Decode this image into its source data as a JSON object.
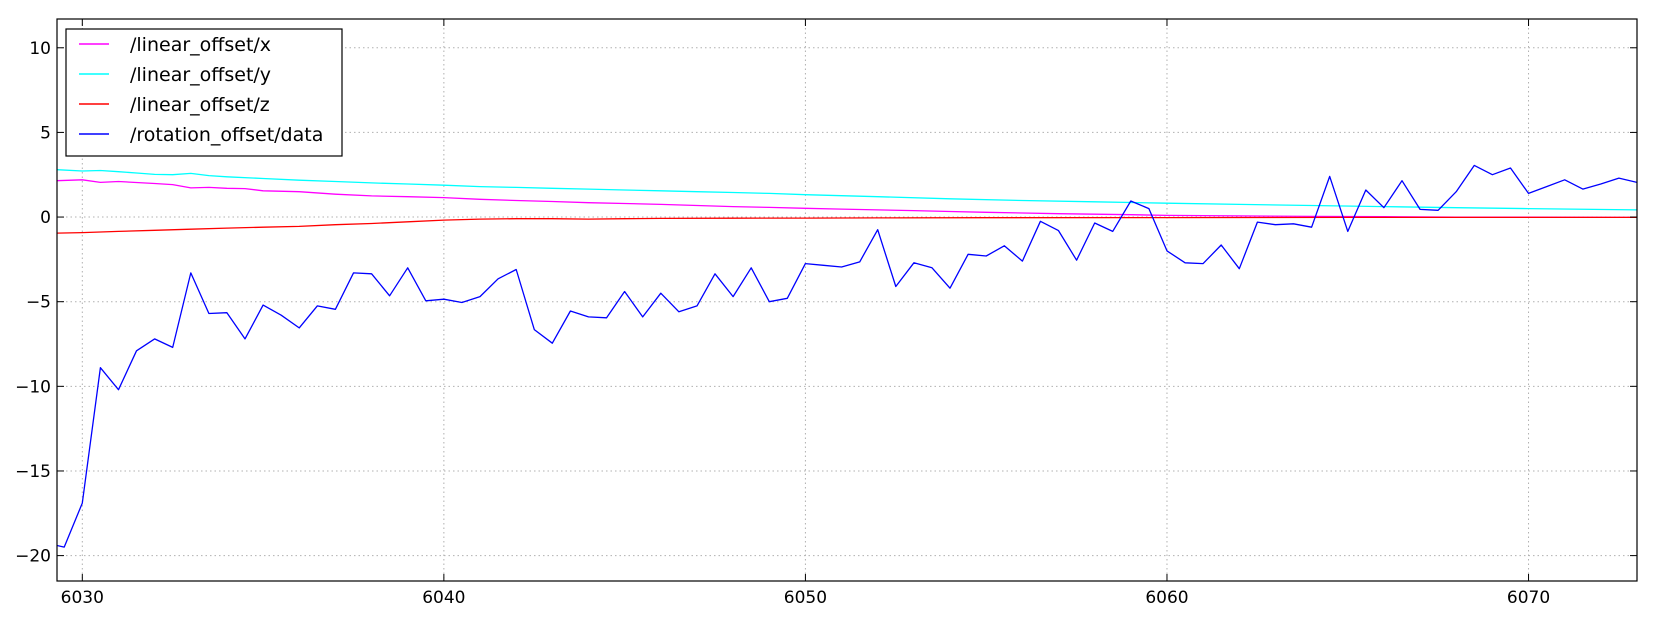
{
  "chart_data": {
    "type": "line",
    "title": "",
    "xlabel": "",
    "ylabel": "",
    "xlim": [
      6029.3,
      6073.0
    ],
    "ylim": [
      -21.5,
      11.7
    ],
    "xticks": [
      6030,
      6040,
      6050,
      6060,
      6070
    ],
    "xtick_labels": [
      "6030",
      "6040",
      "6050",
      "6060",
      "6070"
    ],
    "yticks": [
      10,
      5,
      0,
      -5,
      -10,
      -15,
      -20
    ],
    "ytick_labels": [
      "10",
      "5",
      "0",
      "−5",
      "−10",
      "−15",
      "−20"
    ],
    "grid": true,
    "legend_position": "top-left",
    "series": [
      {
        "name": "/linear_offset/x",
        "color": "#ff00ff",
        "x": [
          6029.3,
          6030.0,
          6030.5,
          6031.0,
          6032.0,
          6032.5,
          6033.0,
          6033.5,
          6034.0,
          6034.5,
          6035.0,
          6036.0,
          6037.0,
          6038.0,
          6039.0,
          6040.0,
          6041.0,
          6042.0,
          6043.0,
          6044.0,
          6045.0,
          6046.0,
          6047.0,
          6048.0,
          6049.0,
          6050.0,
          6051.0,
          6052.0,
          6053.0,
          6054.0,
          6055.0,
          6056.0,
          6057.0,
          6058.0,
          6059.0,
          6060.0,
          6062.0,
          6064.0,
          6066.0,
          6068.0,
          6070.0,
          6073.0
        ],
        "y": [
          2.15,
          2.2,
          2.05,
          2.1,
          1.98,
          1.92,
          1.72,
          1.75,
          1.7,
          1.68,
          1.55,
          1.5,
          1.35,
          1.25,
          1.2,
          1.15,
          1.05,
          0.98,
          0.92,
          0.85,
          0.8,
          0.75,
          0.68,
          0.62,
          0.57,
          0.52,
          0.47,
          0.42,
          0.38,
          0.33,
          0.28,
          0.24,
          0.2,
          0.17,
          0.14,
          0.1,
          0.07,
          0.04,
          0.02,
          0.0,
          -0.01,
          -0.02
        ]
      },
      {
        "name": "/linear_offset/y",
        "color": "#00ffff",
        "x": [
          6029.3,
          6030.0,
          6030.5,
          6031.0,
          6031.5,
          6032.0,
          6032.5,
          6033.0,
          6033.5,
          6034.0,
          6035.0,
          6036.0,
          6037.0,
          6038.0,
          6039.0,
          6040.0,
          6041.0,
          6042.0,
          6043.0,
          6044.0,
          6045.0,
          6046.0,
          6047.0,
          6048.0,
          6049.0,
          6050.0,
          6052.0,
          6054.0,
          6056.0,
          6058.0,
          6060.0,
          6062.0,
          6064.0,
          6066.0,
          6068.0,
          6070.0,
          6073.0
        ],
        "y": [
          2.8,
          2.72,
          2.75,
          2.68,
          2.6,
          2.52,
          2.5,
          2.58,
          2.45,
          2.38,
          2.28,
          2.18,
          2.1,
          2.02,
          1.95,
          1.88,
          1.8,
          1.75,
          1.7,
          1.65,
          1.6,
          1.55,
          1.5,
          1.45,
          1.4,
          1.32,
          1.2,
          1.08,
          0.98,
          0.9,
          0.82,
          0.75,
          0.68,
          0.62,
          0.55,
          0.5,
          0.42
        ]
      },
      {
        "name": "/linear_offset/z",
        "color": "#ff0000",
        "x": [
          6029.3,
          6030.0,
          6031.0,
          6032.0,
          6033.0,
          6034.0,
          6035.0,
          6036.0,
          6037.0,
          6038.0,
          6039.0,
          6040.0,
          6041.0,
          6042.0,
          6043.0,
          6044.0,
          6045.0,
          6046.0,
          6048.0,
          6050.0,
          6052.0,
          6055.0,
          6060.0,
          6065.0,
          6070.0,
          6073.0
        ],
        "y": [
          -0.95,
          -0.92,
          -0.85,
          -0.78,
          -0.72,
          -0.65,
          -0.6,
          -0.55,
          -0.45,
          -0.38,
          -0.28,
          -0.18,
          -0.12,
          -0.1,
          -0.1,
          -0.12,
          -0.1,
          -0.08,
          -0.07,
          -0.06,
          -0.05,
          -0.04,
          -0.03,
          -0.02,
          -0.02,
          -0.02
        ]
      },
      {
        "name": "/rotation_offset/data",
        "color": "#0000ff",
        "x": [
          6029.3,
          6029.5,
          6030.0,
          6030.5,
          6031.0,
          6031.5,
          6032.0,
          6032.5,
          6033.0,
          6033.5,
          6034.0,
          6034.5,
          6035.0,
          6035.5,
          6036.0,
          6036.5,
          6037.0,
          6037.5,
          6038.0,
          6038.5,
          6039.0,
          6039.5,
          6040.0,
          6040.5,
          6041.0,
          6041.5,
          6042.0,
          6042.5,
          6043.0,
          6043.5,
          6044.0,
          6044.5,
          6045.0,
          6045.5,
          6046.0,
          6046.5,
          6047.0,
          6047.5,
          6048.0,
          6048.5,
          6049.0,
          6049.5,
          6050.0,
          6050.5,
          6051.0,
          6051.5,
          6052.0,
          6052.5,
          6053.0,
          6053.5,
          6054.0,
          6054.5,
          6055.0,
          6055.5,
          6056.0,
          6056.5,
          6057.0,
          6057.5,
          6058.0,
          6058.5,
          6059.0,
          6059.5,
          6060.0,
          6060.5,
          6061.0,
          6061.5,
          6062.0,
          6062.5,
          6063.0,
          6063.5,
          6064.0,
          6064.5,
          6065.0,
          6065.5,
          6066.0,
          6066.5,
          6067.0,
          6067.5,
          6068.0,
          6068.5,
          6069.0,
          6069.5,
          6070.0,
          6070.5,
          6071.0,
          6071.5,
          6072.0,
          6072.5,
          6073.0
        ],
        "y": [
          -19.4,
          -19.5,
          -16.9,
          -8.9,
          -10.2,
          -7.9,
          -7.2,
          -7.7,
          -3.3,
          -5.7,
          -5.65,
          -7.2,
          -5.2,
          -5.8,
          -6.55,
          -5.25,
          -5.45,
          -3.3,
          -3.35,
          -4.65,
          -3.0,
          -4.95,
          -4.85,
          -5.05,
          -4.7,
          -3.65,
          -3.1,
          -6.65,
          -7.45,
          -5.55,
          -5.9,
          -5.95,
          -4.4,
          -5.9,
          -4.5,
          -5.6,
          -5.25,
          -3.35,
          -4.7,
          -3.0,
          -5.0,
          -4.8,
          -2.75,
          -2.85,
          -2.95,
          -2.65,
          -0.75,
          -4.1,
          -2.7,
          -3.0,
          -4.2,
          -2.2,
          -2.3,
          -1.7,
          -2.6,
          -0.25,
          -0.8,
          -2.55,
          -0.35,
          -0.85,
          0.95,
          0.5,
          -2.0,
          -2.7,
          -2.75,
          -1.65,
          -3.05,
          -0.3,
          -0.45,
          -0.4,
          -0.6,
          2.4,
          -0.85,
          1.6,
          0.55,
          2.15,
          0.45,
          0.4,
          1.5,
          3.05,
          2.5,
          2.9,
          1.4,
          1.8,
          2.2,
          1.65,
          1.95,
          2.3,
          2.05
        ]
      }
    ]
  }
}
